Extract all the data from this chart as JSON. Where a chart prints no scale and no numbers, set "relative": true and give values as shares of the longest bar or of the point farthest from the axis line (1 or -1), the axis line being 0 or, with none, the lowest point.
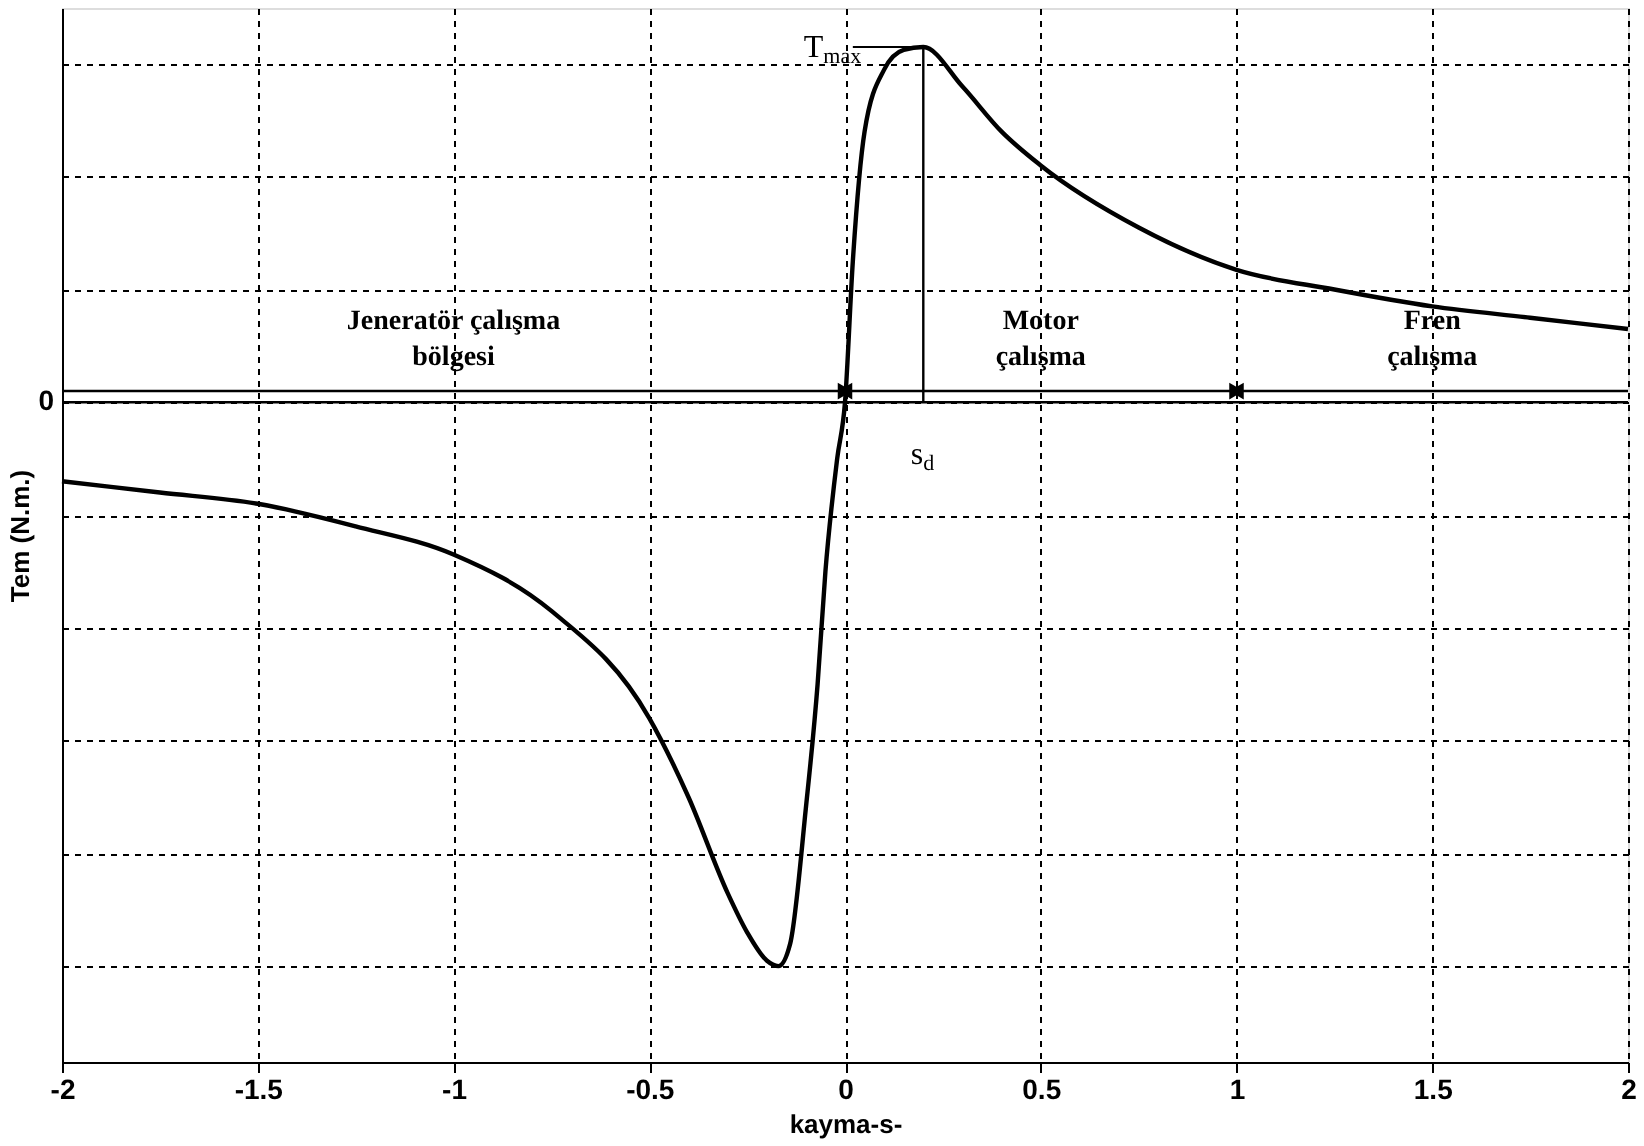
{
  "chart_data": {
    "type": "line",
    "relative": true,
    "xlabel": "kayma-s-",
    "ylabel": "Tem (N.m.)",
    "xlim": [
      -2,
      2
    ],
    "xticks": [
      -2,
      -1.5,
      -1,
      -0.5,
      0,
      0.5,
      1,
      1.5,
      2
    ],
    "grid": true,
    "series": [
      {
        "color": "#000000",
        "x": [
          -2,
          -1.75,
          -1.5,
          -1.25,
          -1,
          -0.75,
          -0.5,
          -0.4,
          -0.3,
          -0.25,
          -0.2,
          -0.17,
          -0.14,
          -0.1,
          -0.07,
          -0.05,
          -0.02,
          0,
          0.02,
          0.05,
          0.1,
          0.15,
          0.2,
          0.3,
          0.4,
          0.5,
          0.75,
          1,
          1.25,
          1.5,
          1.75,
          2
        ],
        "values": [
          -0.14,
          -0.16,
          -0.18,
          -0.22,
          -0.27,
          -0.37,
          -0.56,
          -0.7,
          -0.87,
          -0.94,
          -0.99,
          -1,
          -0.96,
          -0.72,
          -0.5,
          -0.3,
          -0.1,
          0,
          0.25,
          0.48,
          0.59,
          0.625,
          0.63,
          0.56,
          0.48,
          0.42,
          0.31,
          0.235,
          0.2,
          0.17,
          0.15,
          0.13
        ]
      },
      {
        "type": "line",
        "color": "#000000",
        "x": [
          0.2,
          0.2
        ],
        "values": [
          0,
          0.63
        ]
      }
    ],
    "ref_lines": [
      {
        "axis": "y",
        "value": 0,
        "label": "0",
        "color": "#000000"
      },
      {
        "axis": "y",
        "value": 0.02,
        "color": "#000000"
      }
    ],
    "annotations": [
      {
        "text": "Jeneratör çalışma bölgesi",
        "x": -1,
        "y": 0.02
      },
      {
        "text": "Motor çalışma",
        "x": 0.5,
        "y": 0.02
      },
      {
        "text": "Fren çalışma",
        "x": 1.5,
        "y": 0.02
      },
      {
        "text": "T$_{max}$",
        "x": 0.2,
        "y": 0.63
      },
      {
        "text": "s$_{d}$",
        "x": 0.2,
        "y": 0
      }
    ]
  }
}
